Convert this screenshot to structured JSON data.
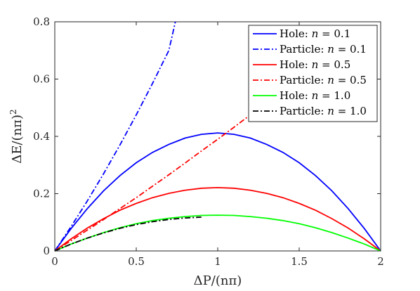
{
  "chart_data": {
    "type": "line",
    "xlabel": "ΔP/(nπ)",
    "ylabel_main": "ΔE/(nπ)",
    "ylabel_sup": "2",
    "xlim": [
      0,
      2
    ],
    "ylim": [
      0,
      0.8
    ],
    "xticks": [
      "0",
      "0.5",
      "1",
      "1.5",
      "2"
    ],
    "yticks": [
      "0",
      "0.2",
      "0.4",
      "0.6",
      "0.8"
    ],
    "grid": false,
    "legend_placement": "top-right",
    "series": [
      {
        "name": "Hole: n = 0.1",
        "label_prefix": "Hole:",
        "label_n": "n = 0.1",
        "color": "#0000ff",
        "dash": "solid",
        "x": [
          0,
          0.1,
          0.2,
          0.3,
          0.4,
          0.5,
          0.6,
          0.7,
          0.8,
          0.9,
          1.0,
          1.1,
          1.2,
          1.3,
          1.4,
          1.5,
          1.6,
          1.7,
          1.8,
          1.9,
          2.0
        ],
        "y": [
          0,
          0.078,
          0.148,
          0.21,
          0.263,
          0.308,
          0.344,
          0.372,
          0.394,
          0.407,
          0.412,
          0.407,
          0.394,
          0.372,
          0.344,
          0.308,
          0.263,
          0.21,
          0.148,
          0.078,
          0
        ]
      },
      {
        "name": "Particle: n = 0.1",
        "label_prefix": "Particle:",
        "label_n": "n = 0.1",
        "color": "#0000ff",
        "dash": "dashdot",
        "x": [
          0,
          0.1,
          0.2,
          0.3,
          0.4,
          0.5,
          0.6,
          0.7,
          0.74
        ],
        "y": [
          0,
          0.085,
          0.175,
          0.27,
          0.37,
          0.475,
          0.585,
          0.7,
          0.8
        ]
      },
      {
        "name": "Hole: n = 0.5",
        "label_prefix": "Hole:",
        "label_n": "n = 0.5",
        "color": "#ff0000",
        "dash": "solid",
        "x": [
          0,
          0.1,
          0.2,
          0.3,
          0.4,
          0.5,
          0.6,
          0.7,
          0.8,
          0.9,
          1.0,
          1.1,
          1.2,
          1.3,
          1.4,
          1.5,
          1.6,
          1.7,
          1.8,
          1.9,
          2.0
        ],
        "y": [
          0,
          0.042,
          0.08,
          0.113,
          0.142,
          0.166,
          0.186,
          0.201,
          0.212,
          0.219,
          0.221,
          0.219,
          0.212,
          0.201,
          0.186,
          0.166,
          0.142,
          0.113,
          0.08,
          0.042,
          0
        ]
      },
      {
        "name": "Particle: n = 0.5",
        "label_prefix": "Particle:",
        "label_n": "n = 0.5",
        "color": "#ff0000",
        "dash": "dashdot",
        "x": [
          0,
          0.1,
          0.2,
          0.3,
          0.4,
          0.5,
          0.6,
          0.7,
          0.8,
          0.9,
          1.0,
          1.1,
          1.2
        ],
        "y": [
          0,
          0.036,
          0.073,
          0.11,
          0.148,
          0.186,
          0.226,
          0.266,
          0.307,
          0.349,
          0.39,
          0.432,
          0.475
        ]
      },
      {
        "name": "Hole: n = 1.0",
        "label_prefix": "Hole:",
        "label_n": "n = 1.0",
        "color": "#00ff00",
        "dash": "solid",
        "x": [
          0,
          0.1,
          0.2,
          0.3,
          0.4,
          0.5,
          0.6,
          0.7,
          0.8,
          0.9,
          1.0,
          1.1,
          1.2,
          1.3,
          1.4,
          1.5,
          1.6,
          1.7,
          1.8,
          1.9,
          2.0
        ],
        "y": [
          0,
          0.024,
          0.045,
          0.064,
          0.081,
          0.095,
          0.106,
          0.114,
          0.12,
          0.124,
          0.125,
          0.124,
          0.12,
          0.114,
          0.106,
          0.095,
          0.081,
          0.064,
          0.045,
          0.024,
          0
        ]
      },
      {
        "name": "Particle: n = 1.0",
        "label_prefix": "Particle:",
        "label_n": "n = 1.0",
        "color": "#000000",
        "dash": "dashdot",
        "x": [
          0,
          0.1,
          0.2,
          0.3,
          0.4,
          0.5,
          0.6,
          0.7,
          0.8,
          0.9
        ],
        "y": [
          0,
          0.024,
          0.045,
          0.063,
          0.079,
          0.092,
          0.102,
          0.11,
          0.115,
          0.118
        ]
      }
    ]
  }
}
